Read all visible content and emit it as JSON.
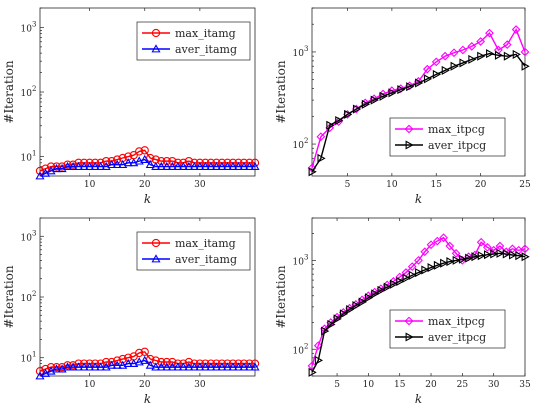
{
  "chart_data": [
    {
      "type": "line",
      "ylabel": "#Iteration",
      "xlabel": "k",
      "yscale": "log",
      "ylim": [
        5,
        2000
      ],
      "xlim": [
        1,
        40
      ],
      "xticks": [
        10,
        20,
        30
      ],
      "yticks": [
        10,
        100,
        1000
      ],
      "legend": "top-right",
      "series": [
        {
          "name": "max_itamg",
          "color": "#ff0000",
          "marker": "circle",
          "x": [
            1,
            2,
            3,
            4,
            5,
            6,
            7,
            8,
            9,
            10,
            11,
            12,
            13,
            14,
            15,
            16,
            17,
            18,
            19,
            20,
            21,
            22,
            23,
            24,
            25,
            26,
            27,
            28,
            29,
            30,
            31,
            32,
            33,
            34,
            35,
            36,
            37,
            38,
            39,
            40
          ],
          "values": [
            6,
            6.5,
            7,
            7,
            7,
            7.5,
            7.5,
            8,
            8,
            8,
            8,
            8,
            8.5,
            8.5,
            9,
            9.5,
            10,
            10.5,
            12,
            12.5,
            9.5,
            9,
            8.5,
            8.5,
            8.5,
            8,
            8,
            8.5,
            8,
            8,
            8,
            8,
            8,
            8,
            8,
            8,
            8,
            8,
            8,
            8
          ]
        },
        {
          "name": "aver_itamg",
          "color": "#0000ff",
          "marker": "triangle",
          "x": [
            1,
            2,
            3,
            4,
            5,
            6,
            7,
            8,
            9,
            10,
            11,
            12,
            13,
            14,
            15,
            16,
            17,
            18,
            19,
            20,
            21,
            22,
            23,
            24,
            25,
            26,
            27,
            28,
            29,
            30,
            31,
            32,
            33,
            34,
            35,
            36,
            37,
            38,
            39,
            40
          ],
          "values": [
            5,
            5.5,
            6,
            6.5,
            6.5,
            7,
            7,
            7,
            7,
            7,
            7,
            7,
            7,
            7.5,
            7.5,
            7.5,
            8,
            8,
            8.5,
            9,
            7.5,
            7,
            7,
            7,
            7,
            7,
            7,
            7,
            7,
            7,
            7,
            7,
            7,
            7,
            7,
            7,
            7,
            7,
            7,
            7
          ]
        }
      ]
    },
    {
      "type": "line",
      "ylabel": "#Iteration",
      "xlabel": "k",
      "yscale": "log",
      "ylim": [
        45,
        3000
      ],
      "xlim": [
        1,
        25
      ],
      "xticks": [
        5,
        10,
        15,
        20,
        25
      ],
      "yticks": [
        100,
        1000
      ],
      "legend": "center-right",
      "series": [
        {
          "name": "max_itpcg",
          "color": "#ff00ff",
          "marker": "diamond",
          "x": [
            1,
            2,
            3,
            4,
            5,
            6,
            7,
            8,
            9,
            10,
            11,
            12,
            13,
            14,
            15,
            16,
            17,
            18,
            19,
            20,
            21,
            22,
            23,
            24,
            25
          ],
          "values": [
            55,
            120,
            150,
            175,
            210,
            240,
            280,
            310,
            350,
            380,
            400,
            430,
            480,
            650,
            780,
            900,
            980,
            1050,
            1150,
            1300,
            1600,
            1050,
            1200,
            1750,
            1000
          ]
        },
        {
          "name": "aver_itpcg",
          "color": "#000000",
          "marker": "triangle-right",
          "x": [
            1,
            2,
            3,
            4,
            5,
            6,
            7,
            8,
            9,
            10,
            11,
            12,
            13,
            14,
            15,
            16,
            17,
            18,
            19,
            20,
            21,
            22,
            23,
            24,
            25
          ],
          "values": [
            50,
            70,
            160,
            180,
            210,
            240,
            270,
            300,
            330,
            360,
            390,
            420,
            460,
            510,
            570,
            630,
            700,
            760,
            830,
            900,
            960,
            920,
            900,
            940,
            700
          ]
        }
      ]
    },
    {
      "type": "line",
      "ylabel": "#Iteration",
      "xlabel": "k",
      "yscale": "log",
      "ylim": [
        5,
        2000
      ],
      "xlim": [
        1,
        40
      ],
      "xticks": [
        10,
        20,
        30
      ],
      "yticks": [
        10,
        100,
        1000
      ],
      "legend": "top-right",
      "series": [
        {
          "name": "max_itamg",
          "color": "#ff0000",
          "marker": "circle",
          "x": [
            1,
            2,
            3,
            4,
            5,
            6,
            7,
            8,
            9,
            10,
            11,
            12,
            13,
            14,
            15,
            16,
            17,
            18,
            19,
            20,
            21,
            22,
            23,
            24,
            25,
            26,
            27,
            28,
            29,
            30,
            31,
            32,
            33,
            34,
            35,
            36,
            37,
            38,
            39,
            40
          ],
          "values": [
            6,
            6.5,
            7,
            7,
            7,
            7.5,
            7.5,
            8,
            8,
            8,
            8,
            8,
            8.5,
            8.5,
            9,
            9.5,
            10,
            10.5,
            12,
            12.5,
            9.5,
            9,
            8.5,
            8.5,
            8.5,
            8,
            8,
            8.5,
            8,
            8,
            8,
            8,
            8,
            8,
            8,
            8,
            8,
            8,
            8,
            8
          ]
        },
        {
          "name": "aver_itamg",
          "color": "#0000ff",
          "marker": "triangle",
          "x": [
            1,
            2,
            3,
            4,
            5,
            6,
            7,
            8,
            9,
            10,
            11,
            12,
            13,
            14,
            15,
            16,
            17,
            18,
            19,
            20,
            21,
            22,
            23,
            24,
            25,
            26,
            27,
            28,
            29,
            30,
            31,
            32,
            33,
            34,
            35,
            36,
            37,
            38,
            39,
            40
          ],
          "values": [
            5,
            5.5,
            6,
            6.5,
            6.5,
            7,
            7,
            7,
            7,
            7,
            7,
            7,
            7,
            7.5,
            7.5,
            7.5,
            8,
            8,
            8.5,
            9,
            7.5,
            7,
            7,
            7,
            7,
            7,
            7,
            7,
            7,
            7,
            7,
            7,
            7,
            7,
            7,
            7,
            7,
            7,
            7,
            7
          ]
        }
      ]
    },
    {
      "type": "line",
      "ylabel": "#Iteration",
      "xlabel": "k",
      "yscale": "log",
      "ylim": [
        50,
        3000
      ],
      "xlim": [
        1,
        35
      ],
      "xticks": [
        5,
        10,
        15,
        20,
        25,
        30,
        35
      ],
      "yticks": [
        100,
        1000
      ],
      "legend": "center-right",
      "series": [
        {
          "name": "max_itpcg",
          "color": "#ff00ff",
          "marker": "diamond",
          "x": [
            1,
            2,
            3,
            4,
            5,
            6,
            7,
            8,
            9,
            10,
            11,
            12,
            13,
            14,
            15,
            16,
            17,
            18,
            19,
            20,
            21,
            22,
            23,
            24,
            25,
            26,
            27,
            28,
            29,
            30,
            31,
            32,
            33,
            34,
            35
          ],
          "values": [
            65,
            110,
            170,
            200,
            230,
            260,
            290,
            320,
            360,
            400,
            440,
            480,
            530,
            580,
            650,
            730,
            850,
            1000,
            1250,
            1500,
            1650,
            1800,
            1450,
            1200,
            1000,
            1100,
            1150,
            1600,
            1400,
            1300,
            1450,
            1250,
            1350,
            1300,
            1350
          ]
        },
        {
          "name": "aver_itpcg",
          "color": "#000000",
          "marker": "triangle-right",
          "x": [
            1,
            2,
            3,
            4,
            5,
            6,
            7,
            8,
            9,
            10,
            11,
            12,
            13,
            14,
            15,
            16,
            17,
            18,
            19,
            20,
            21,
            22,
            23,
            24,
            25,
            26,
            27,
            28,
            29,
            30,
            31,
            32,
            33,
            34,
            35
          ],
          "values": [
            55,
            75,
            160,
            190,
            220,
            250,
            280,
            310,
            340,
            380,
            420,
            460,
            500,
            540,
            580,
            630,
            680,
            730,
            780,
            830,
            880,
            930,
            970,
            1000,
            1030,
            1060,
            1100,
            1130,
            1160,
            1180,
            1200,
            1180,
            1150,
            1130,
            1100
          ]
        }
      ]
    }
  ]
}
